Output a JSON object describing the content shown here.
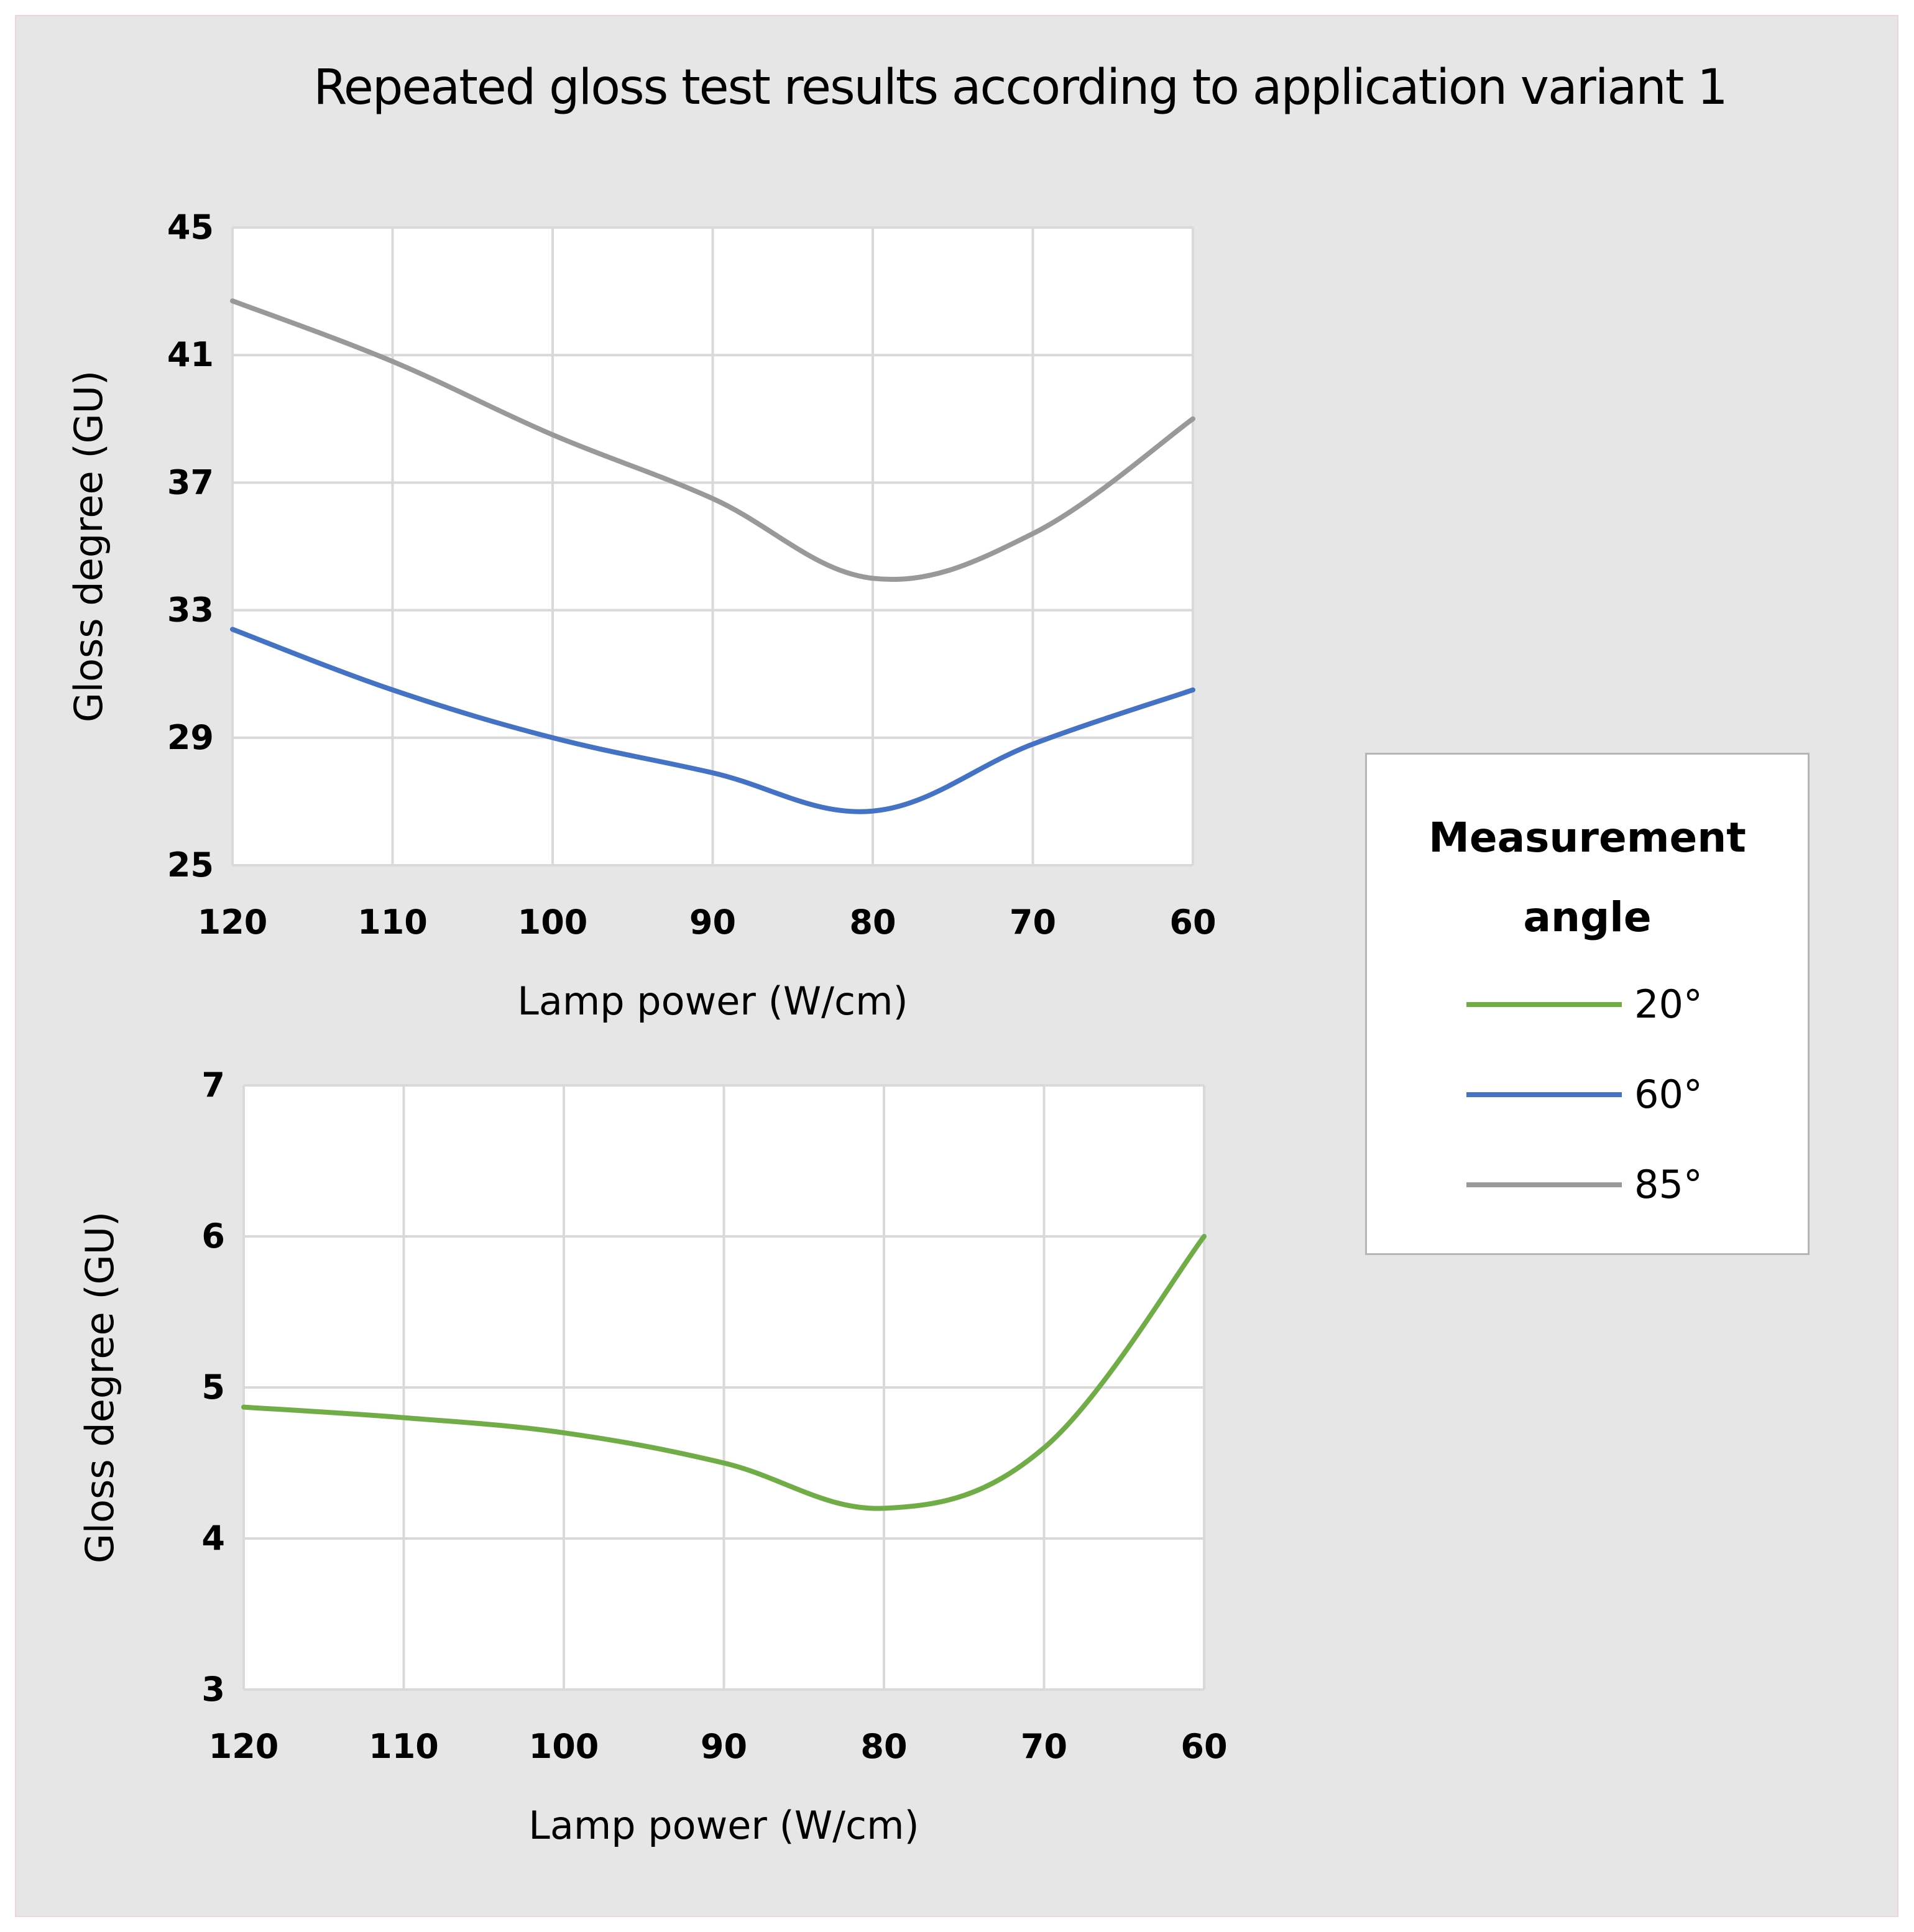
{
  "title": "Repeated gloss test results according to application variant 1",
  "legend": {
    "title_line1": "Measurement",
    "title_line2": "angle",
    "items": [
      {
        "label": "20°",
        "color": "#70ad47"
      },
      {
        "label": "60°",
        "color": "#4472c4"
      },
      {
        "label": "85°",
        "color": "#999999"
      }
    ]
  },
  "chart_data": [
    {
      "type": "line",
      "xlabel": "Lamp power (W/cm)",
      "ylabel": "Gloss degree (GU)",
      "categories": [
        "120",
        "110",
        "100",
        "90",
        "80",
        "70",
        "60"
      ],
      "x": [
        120,
        110,
        100,
        90,
        80,
        70,
        60
      ],
      "xlim": [
        120,
        60
      ],
      "ylim": [
        25,
        45
      ],
      "yticks": [
        25,
        29,
        33,
        37,
        41,
        45
      ],
      "grid": true,
      "series": [
        {
          "name": "60°",
          "color": "#4472c4",
          "values": [
            32.4,
            30.5,
            29.0,
            27.9,
            26.7,
            28.8,
            30.5
          ]
        },
        {
          "name": "85°",
          "color": "#999999",
          "values": [
            42.7,
            40.8,
            38.5,
            36.5,
            34.0,
            35.4,
            39.0
          ]
        }
      ]
    },
    {
      "type": "line",
      "xlabel": "Lamp power (W/cm)",
      "ylabel": "Gloss degree (GU)",
      "categories": [
        "120",
        "110",
        "100",
        "90",
        "80",
        "70",
        "60"
      ],
      "x": [
        120,
        110,
        100,
        90,
        80,
        70,
        60
      ],
      "xlim": [
        120,
        60
      ],
      "ylim": [
        3,
        7
      ],
      "yticks": [
        3,
        4,
        5,
        6,
        7
      ],
      "grid": true,
      "series": [
        {
          "name": "20°",
          "color": "#70ad47",
          "values": [
            4.87,
            4.8,
            4.7,
            4.5,
            4.2,
            4.6,
            6.0
          ]
        }
      ]
    }
  ]
}
